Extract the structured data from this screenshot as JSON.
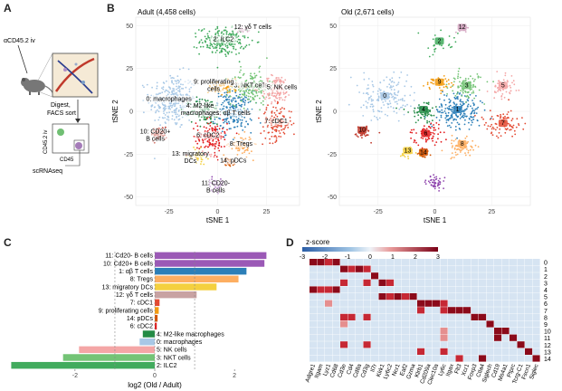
{
  "panels": {
    "a": "A",
    "b": "B",
    "c": "C",
    "d": "D"
  },
  "schematic": {
    "iv_label": "αCD45.2 iv",
    "step1": "Digest,",
    "step2": "FACS sort",
    "y_label": "CD45.2 iv",
    "x_label": "CD45",
    "seq": "scRNAseq"
  },
  "chart_data": [
    {
      "type": "scatter",
      "title": "Adult (4,458 cells)",
      "xlabel": "tSNE 1",
      "ylabel": "tSNE 2",
      "xticks": [
        -25,
        0,
        25
      ],
      "yticks": [
        50,
        25,
        0,
        -25,
        -50
      ],
      "xlim": [
        -42,
        42
      ],
      "ylim": [
        -55,
        55
      ],
      "clusters": [
        {
          "id": 0,
          "label": "0: macrophages",
          "color": "#a8c8e6",
          "x": -23,
          "y": 6,
          "n": 300,
          "sx": 6,
          "sy": 8
        },
        {
          "id": 1,
          "label": "1: αβ T cells",
          "color": "#2c7fb8",
          "x": 8,
          "y": 0,
          "n": 220,
          "sx": 5,
          "sy": 6
        },
        {
          "id": 2,
          "label": "2: ILC2",
          "color": "#41ab5d",
          "x": 3,
          "y": 41,
          "n": 220,
          "sx": 6,
          "sy": 4
        },
        {
          "id": 3,
          "label": "3: NKT cells",
          "color": "#74c476",
          "x": 17,
          "y": 14,
          "n": 170,
          "sx": 5,
          "sy": 5
        },
        {
          "id": 4,
          "label": "4: M2-like macrophages",
          "color": "#238b45",
          "x": -6,
          "y": 0,
          "n": 110,
          "sx": 4,
          "sy": 4
        },
        {
          "id": 5,
          "label": "5: NK cells",
          "color": "#f4a6a6",
          "x": 30,
          "y": 13,
          "n": 130,
          "sx": 4,
          "sy": 4
        },
        {
          "id": 6,
          "label": "6: cDC2",
          "color": "#e31a1c",
          "x": -3,
          "y": -15,
          "n": 150,
          "sx": 4,
          "sy": 5
        },
        {
          "id": 7,
          "label": "7: cDC1",
          "color": "#e34a33",
          "x": 30,
          "y": -7,
          "n": 140,
          "sx": 4,
          "sy": 5
        },
        {
          "id": 8,
          "label": "8: Tregs",
          "color": "#fdae61",
          "x": 12,
          "y": -20,
          "n": 70,
          "sx": 3,
          "sy": 3
        },
        {
          "id": 9,
          "label": "9: proliferating cells",
          "color": "#f39c12",
          "x": 3,
          "y": 14,
          "n": 70,
          "sx": 4,
          "sy": 2
        },
        {
          "id": 10,
          "label": "10: CD20+ B cells",
          "color": "#c0392b",
          "x": -30,
          "y": -13,
          "n": 60,
          "sx": 2,
          "sy": 2
        },
        {
          "id": 11,
          "label": "11: CD20- B cells",
          "color": "#8e44ad",
          "x": -1,
          "y": -43,
          "n": 40,
          "sx": 2,
          "sy": 2
        },
        {
          "id": 12,
          "label": "12: γδ T cells",
          "color": "#d4a5c0",
          "x": 13,
          "y": 48,
          "n": 20,
          "sx": 1.5,
          "sy": 1
        },
        {
          "id": 13,
          "label": "13: migratory DCs",
          "color": "#f4d03f",
          "x": -10,
          "y": -26,
          "n": 40,
          "sx": 2,
          "sy": 2
        },
        {
          "id": 14,
          "label": "14: pDCs",
          "color": "#d35400",
          "x": 6,
          "y": -30,
          "n": 25,
          "sx": 1.5,
          "sy": 1.5
        }
      ]
    },
    {
      "type": "scatter",
      "title": "Old (2,671 cells)",
      "xlabel": "tSNE 1",
      "ylabel": "tSNE 2",
      "xticks": [
        -25,
        0,
        25
      ],
      "yticks": [
        50,
        25,
        0,
        -25,
        -50
      ],
      "xlim": [
        -42,
        42
      ],
      "ylim": [
        -55,
        55
      ],
      "clusters": [
        {
          "id": 0,
          "label": "0",
          "color": "#a8c8e6",
          "x": -22,
          "y": 8,
          "n": 160,
          "sx": 6,
          "sy": 6
        },
        {
          "id": 1,
          "label": "1",
          "color": "#2c7fb8",
          "x": 10,
          "y": 0,
          "n": 200,
          "sx": 5,
          "sy": 5
        },
        {
          "id": 2,
          "label": "2",
          "color": "#41ab5d",
          "x": 2,
          "y": 40,
          "n": 25,
          "sx": 5,
          "sy": 4
        },
        {
          "id": 3,
          "label": "3",
          "color": "#74c476",
          "x": 14,
          "y": 14,
          "n": 90,
          "sx": 4,
          "sy": 4
        },
        {
          "id": 4,
          "label": "4",
          "color": "#238b45",
          "x": -5,
          "y": 0,
          "n": 60,
          "sx": 3,
          "sy": 3
        },
        {
          "id": 5,
          "label": "5",
          "color": "#f4a6a6",
          "x": 30,
          "y": 14,
          "n": 60,
          "sx": 3,
          "sy": 3
        },
        {
          "id": 6,
          "label": "6",
          "color": "#e31a1c",
          "x": -4,
          "y": -14,
          "n": 70,
          "sx": 4,
          "sy": 4
        },
        {
          "id": 7,
          "label": "7",
          "color": "#e34a33",
          "x": 30,
          "y": -8,
          "n": 80,
          "sx": 4,
          "sy": 4
        },
        {
          "id": 8,
          "label": "8",
          "color": "#fdae61",
          "x": 12,
          "y": -20,
          "n": 70,
          "sx": 3,
          "sy": 3
        },
        {
          "id": 9,
          "label": "9",
          "color": "#f39c12",
          "x": 2,
          "y": 16,
          "n": 40,
          "sx": 3,
          "sy": 2
        },
        {
          "id": 10,
          "label": "10",
          "color": "#c0392b",
          "x": -32,
          "y": -12,
          "n": 40,
          "sx": 2,
          "sy": 2
        },
        {
          "id": 11,
          "label": "",
          "color": "#8e44ad",
          "x": 0,
          "y": -42,
          "n": 50,
          "sx": 2,
          "sy": 2
        },
        {
          "id": 12,
          "label": "12",
          "color": "#d4a5c0",
          "x": 12,
          "y": 48,
          "n": 12,
          "sx": 1.5,
          "sy": 1
        },
        {
          "id": 13,
          "label": "13",
          "color": "#f4d03f",
          "x": -12,
          "y": -24,
          "n": 25,
          "sx": 2,
          "sy": 2
        },
        {
          "id": 14,
          "label": "14",
          "color": "#d35400",
          "x": -5,
          "y": -25,
          "n": 20,
          "sx": 1.5,
          "sy": 1.5
        }
      ]
    },
    {
      "type": "bar",
      "orientation": "horizontal",
      "xlabel": "log2 (Old / Adult)",
      "xticks": [
        -2,
        0,
        2
      ],
      "xlim": [
        -3.7,
        3.2
      ],
      "dashed_lines": [
        -1,
        0,
        1
      ],
      "categories": [
        "11: Cd20- B cells",
        "10: Cd20+ B cells",
        "1: αβ T cells",
        "8: Tregs",
        "13: migratory DCs",
        "12: γδ T cells",
        "7: cDC1",
        "9: proliferating cells",
        "14: pDCs",
        "6: cDC2",
        "4: M2-like macrophages",
        "0: macrophages",
        "5: NK cells",
        "3: NKT cells",
        "2: ILC2"
      ],
      "values": [
        2.8,
        2.75,
        2.3,
        2.1,
        1.55,
        1.05,
        0.12,
        0.1,
        0.07,
        0.05,
        -0.3,
        -0.38,
        -1.9,
        -2.3,
        -3.6
      ],
      "colors": [
        "#9b59b6",
        "#9b59b6",
        "#2c7fb8",
        "#fdae61",
        "#f4d03f",
        "#c8a2a2",
        "#e34a33",
        "#f39c12",
        "#d35400",
        "#e31a1c",
        "#238b45",
        "#a8c8e6",
        "#f4a6a6",
        "#74c476",
        "#41ab5d"
      ]
    },
    {
      "type": "heatmap",
      "legend_title": "z-score",
      "legend_ticks": [
        -3,
        -2,
        -1,
        0,
        1,
        2,
        3
      ],
      "rows": [
        "0",
        "1",
        "2",
        "3",
        "4",
        "5",
        "6",
        "7",
        "8",
        "9",
        "10",
        "11",
        "12",
        "13",
        "14"
      ],
      "columns": [
        "Adgre1",
        "Itgam",
        "Lyz1",
        "Cd68",
        "Cd3e",
        "Cd4",
        "Cd8a",
        "Cd3g",
        "Il7r",
        "Klrk1",
        "Ly6c2",
        "Ncr1",
        "Gzma",
        "Klrb1",
        "Itgax",
        "Cd209a",
        "Clec10a",
        "Cd74",
        "Irf8",
        "Foxp3",
        "Ccr7",
        "Ctla4",
        "Siglech",
        "Cd19",
        "Ms4a1",
        "Ptprc",
        "Tcrg-C1",
        "Flt3",
        "Xcr1",
        "Cd24a"
      ],
      "rotated_labels": [
        "Adgre1",
        "Itgam",
        "Lyz1",
        "Cd68",
        "Cd3e",
        "Cd4",
        "Cd8a",
        "Cd3g",
        "Il7r",
        "Klrk1",
        "Ly6c2",
        "Ncr1",
        "Eaf2",
        "Gzma",
        "Klrb1",
        "Cd209a",
        "Clec10a",
        "Ly6c",
        "Itgax",
        "Flt3",
        "Xcr1",
        "Foxp3",
        "Ctla4",
        "Siglech",
        "Cd19",
        "Ms4a1",
        "Ptprc",
        "Tcrg-C1",
        "Fscn1",
        "Siglec"
      ],
      "values": [
        [
          3,
          3,
          2,
          3,
          0,
          0,
          0,
          0,
          0,
          0,
          0,
          0,
          0,
          0,
          0,
          0,
          0,
          0,
          0,
          0,
          0,
          0,
          0,
          0,
          0,
          0,
          0,
          0,
          0,
          0
        ],
        [
          0,
          0,
          0,
          0,
          3,
          2,
          3,
          2,
          0,
          0,
          0,
          0,
          0,
          0,
          0,
          0,
          0,
          0,
          0,
          0,
          0,
          0,
          0,
          0,
          0,
          0,
          0,
          0,
          0,
          0
        ],
        [
          0,
          0,
          0,
          0,
          0,
          0,
          0,
          0,
          3,
          0,
          0,
          0,
          0,
          0,
          0,
          0,
          0,
          0,
          0,
          0,
          0,
          0,
          0,
          0,
          0,
          0,
          0,
          0,
          0,
          0
        ],
        [
          0,
          0,
          0,
          0,
          2,
          0,
          0,
          2,
          0,
          3,
          2,
          0,
          0,
          0,
          0,
          0,
          0,
          0,
          0,
          0,
          0,
          0,
          0,
          0,
          0,
          0,
          0,
          0,
          0,
          0
        ],
        [
          3,
          2,
          2,
          3,
          0,
          0,
          0,
          0,
          0,
          0,
          0,
          0,
          0,
          0,
          0,
          0,
          0,
          0,
          0,
          0,
          0,
          0,
          0,
          0,
          0,
          0,
          0,
          0,
          0,
          0
        ],
        [
          0,
          0,
          0,
          0,
          0,
          0,
          0,
          0,
          0,
          3,
          2,
          3,
          2,
          3,
          0,
          0,
          0,
          0,
          0,
          0,
          0,
          0,
          0,
          0,
          0,
          0,
          0,
          0,
          0,
          0
        ],
        [
          0,
          0,
          1,
          0,
          0,
          0,
          0,
          0,
          0,
          0,
          0,
          0,
          0,
          0,
          3,
          3,
          3,
          2,
          0,
          0,
          0,
          0,
          0,
          0,
          0,
          0,
          0,
          0,
          0,
          0
        ],
        [
          0,
          0,
          0,
          0,
          0,
          0,
          0,
          0,
          0,
          0,
          0,
          0,
          0,
          0,
          2,
          0,
          0,
          2,
          3,
          3,
          3,
          0,
          0,
          0,
          0,
          0,
          0,
          0,
          0,
          0
        ],
        [
          0,
          0,
          0,
          0,
          2,
          2,
          0,
          2,
          0,
          0,
          0,
          0,
          0,
          0,
          0,
          0,
          0,
          0,
          0,
          0,
          0,
          3,
          3,
          0,
          0,
          0,
          0,
          0,
          0,
          0
        ],
        [
          0,
          0,
          0,
          0,
          1,
          0,
          0,
          0,
          0,
          0,
          0,
          0,
          0,
          0,
          0,
          0,
          0,
          0,
          0,
          0,
          0,
          0,
          0,
          3,
          0,
          0,
          0,
          0,
          0,
          0
        ],
        [
          0,
          0,
          0,
          0,
          0,
          0,
          0,
          0,
          0,
          0,
          0,
          0,
          0,
          0,
          0,
          0,
          0,
          1,
          0,
          0,
          0,
          0,
          0,
          0,
          3,
          3,
          0,
          0,
          0,
          0
        ],
        [
          0,
          0,
          0,
          0,
          0,
          0,
          0,
          0,
          0,
          0,
          0,
          0,
          0,
          0,
          0,
          0,
          0,
          1,
          0,
          0,
          0,
          0,
          0,
          0,
          3,
          0,
          3,
          0,
          0,
          0
        ],
        [
          0,
          0,
          0,
          0,
          2,
          0,
          0,
          2,
          0,
          0,
          0,
          0,
          0,
          0,
          0,
          0,
          0,
          0,
          0,
          0,
          0,
          0,
          0,
          0,
          0,
          0,
          0,
          3,
          0,
          0
        ],
        [
          0,
          0,
          0,
          0,
          0,
          0,
          0,
          0,
          0,
          0,
          0,
          0,
          0,
          0,
          2,
          0,
          0,
          2,
          0,
          0,
          0,
          0,
          0,
          0,
          0,
          0,
          0,
          0,
          3,
          0
        ],
        [
          0,
          0,
          0,
          0,
          0,
          0,
          0,
          0,
          0,
          0,
          0,
          0,
          0,
          0,
          0,
          0,
          0,
          0,
          0,
          2,
          0,
          0,
          3,
          0,
          0,
          0,
          0,
          0,
          0,
          3
        ]
      ]
    }
  ]
}
